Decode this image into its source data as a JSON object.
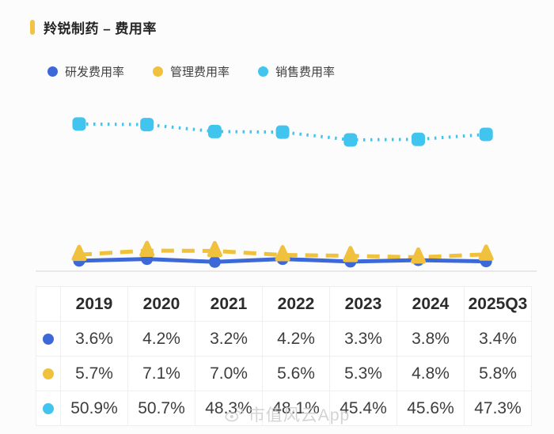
{
  "header": {
    "title": "羚锐制药 – 费用率",
    "accent_bar_color": "#F2C445"
  },
  "chart_data": {
    "type": "line",
    "title": "羚锐制药 – 费用率",
    "categories": [
      "2019",
      "2020",
      "2021",
      "2022",
      "2023",
      "2024",
      "2025Q3"
    ],
    "series": [
      {
        "name": "研发费用率",
        "color": "#3D68D8",
        "line_style": "solid",
        "marker": "circle",
        "values": [
          3.6,
          4.2,
          3.2,
          4.2,
          3.3,
          3.8,
          3.4
        ]
      },
      {
        "name": "管理费用率",
        "color": "#F0C13D",
        "line_style": "dashed",
        "marker": "triangle",
        "values": [
          5.7,
          7.1,
          7.0,
          5.6,
          5.3,
          4.8,
          5.8
        ]
      },
      {
        "name": "销售费用率",
        "color": "#41C5EF",
        "line_style": "dotted",
        "marker": "square",
        "values": [
          50.9,
          50.7,
          48.3,
          48.1,
          45.4,
          45.6,
          47.3
        ]
      }
    ],
    "unit": "%",
    "ylim": [
      0,
      55
    ],
    "grid": false,
    "legend_position": "top-left",
    "baseline_color": "#e8e8e8"
  },
  "table": {
    "columns": [
      "",
      "2019",
      "2020",
      "2021",
      "2022",
      "2023",
      "2024",
      "2025Q3"
    ],
    "rows": [
      {
        "series": "研发费用率",
        "marker_color": "#3D68D8",
        "values": [
          "3.6%",
          "4.2%",
          "3.2%",
          "4.2%",
          "3.3%",
          "3.8%",
          "3.4%"
        ]
      },
      {
        "series": "管理费用率",
        "marker_color": "#F0C13D",
        "values": [
          "5.7%",
          "7.1%",
          "7.0%",
          "5.6%",
          "5.3%",
          "4.8%",
          "5.8%"
        ]
      },
      {
        "series": "销售费用率",
        "marker_color": "#41C5EF",
        "values": [
          "50.9%",
          "50.7%",
          "48.3%",
          "48.1%",
          "45.4%",
          "45.6%",
          "47.3%"
        ]
      }
    ]
  },
  "watermark": {
    "text": "市值风云App"
  }
}
